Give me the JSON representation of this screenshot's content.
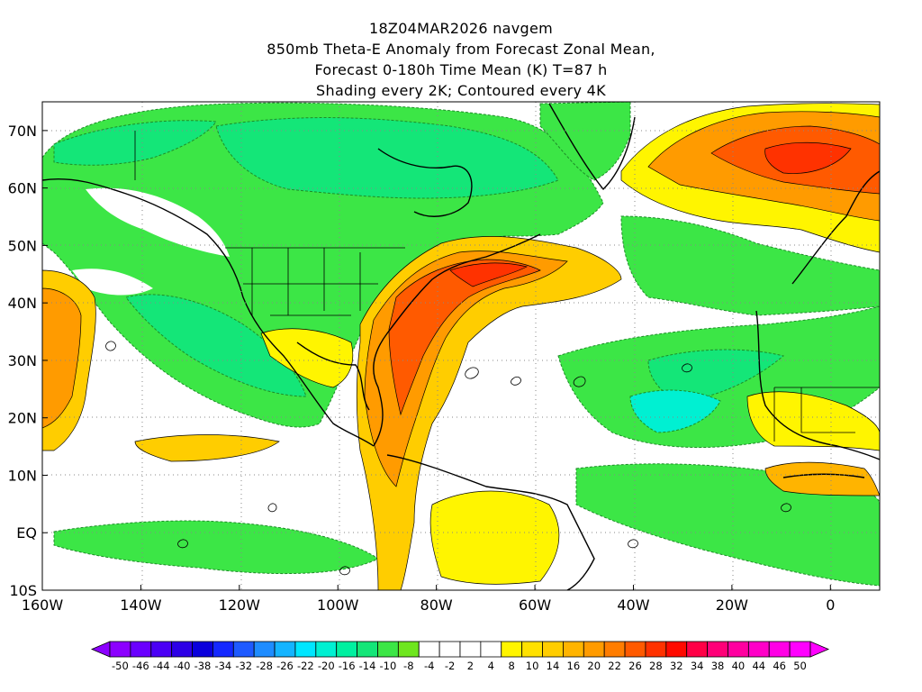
{
  "header": {
    "line1": "18Z04MAR2026 navgem",
    "line2": "850mb Theta-E Anomaly from Forecast Zonal Mean,",
    "line3": "Forecast 0-180h Time Mean (K) T=87 h",
    "line4": "Shading every 2K; Contoured every 4K"
  },
  "map": {
    "lon_range": [
      -160,
      10
    ],
    "lat_range": [
      -10,
      75
    ],
    "lon_ticks": [
      {
        "value": -160,
        "label": "160W"
      },
      {
        "value": -140,
        "label": "140W"
      },
      {
        "value": -120,
        "label": "120W"
      },
      {
        "value": -100,
        "label": "100W"
      },
      {
        "value": -80,
        "label": "80W"
      },
      {
        "value": -60,
        "label": "60W"
      },
      {
        "value": -40,
        "label": "40W"
      },
      {
        "value": -20,
        "label": "20W"
      },
      {
        "value": 0,
        "label": "0"
      }
    ],
    "lat_ticks": [
      {
        "value": -10,
        "label": "10S"
      },
      {
        "value": 0,
        "label": "EQ"
      },
      {
        "value": 10,
        "label": "10N"
      },
      {
        "value": 20,
        "label": "20N"
      },
      {
        "value": 30,
        "label": "30N"
      },
      {
        "value": 40,
        "label": "40N"
      },
      {
        "value": 50,
        "label": "50N"
      },
      {
        "value": 60,
        "label": "60N"
      },
      {
        "value": 70,
        "label": "70N"
      }
    ]
  },
  "colorbar": {
    "colors": [
      "#8c00ff",
      "#6a00ff",
      "#4b00f5",
      "#2d00e6",
      "#0a00dc",
      "#1428ff",
      "#1e5aff",
      "#1e8cff",
      "#14b4ff",
      "#00e6ff",
      "#00f0d2",
      "#00f0a0",
      "#14e678",
      "#3ce646",
      "#6ee61e",
      "#ffffff",
      "#ffffff",
      "#ffffff",
      "#ffffff",
      "#fff500",
      "#ffe100",
      "#ffcd00",
      "#ffb400",
      "#ff9b00",
      "#ff7d00",
      "#ff5a00",
      "#ff3200",
      "#ff0a00",
      "#ff0046",
      "#ff0078",
      "#ff00a0",
      "#ff00c8",
      "#ff00e6",
      "#ff00ff"
    ],
    "labels": [
      "-50",
      "-46",
      "-44",
      "-40",
      "-38",
      "-34",
      "-32",
      "-28",
      "-26",
      "-22",
      "-20",
      "-16",
      "-14",
      "-10",
      "-8",
      "-4",
      "-2",
      "2",
      "4",
      "8",
      "10",
      "14",
      "16",
      "20",
      "22",
      "26",
      "28",
      "32",
      "34",
      "38",
      "40",
      "44",
      "46",
      "50"
    ]
  }
}
